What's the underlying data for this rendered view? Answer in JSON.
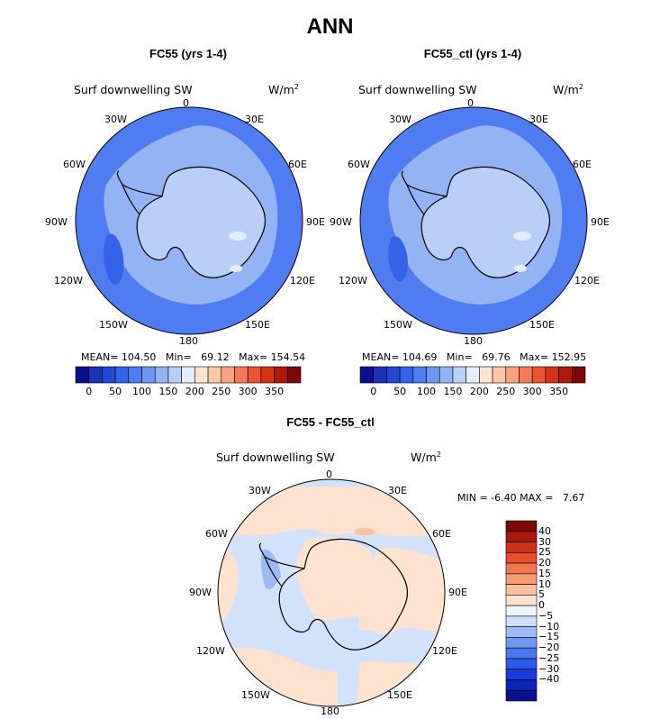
{
  "title": "ANN",
  "panels": [
    {
      "title": "FC55 (yrs 1-4)",
      "variable": "Surf downwelling SW",
      "units_base": "W/m",
      "units_exp": "2",
      "stats": {
        "mean_label": "MEAN=",
        "mean": "104.50",
        "min_label": "Min=",
        "min": "69.12",
        "max_label": "Max=",
        "max": "154.54"
      }
    },
    {
      "title": "FC55_ctl (yrs 1-4)",
      "variable": "Surf downwelling SW",
      "units_base": "W/m",
      "units_exp": "2",
      "stats": {
        "mean_label": "MEAN=",
        "mean": "104.69",
        "min_label": "Min=",
        "min": "69.76",
        "max_label": "Max=",
        "max": "152.95"
      }
    },
    {
      "title": "FC55 - FC55_ctl",
      "variable": "Surf downwelling SW",
      "units_base": "W/m",
      "units_exp": "2",
      "stats": {
        "min_label": "MIN =",
        "min": "-6.40",
        "max_label": "MAX =",
        "max": "7.67"
      }
    }
  ],
  "lon_labels": [
    "0",
    "30E",
    "60E",
    "90E",
    "120E",
    "150E",
    "180",
    "150W",
    "120W",
    "90W",
    "60W",
    "30W"
  ],
  "abs_colorbar": {
    "colors": [
      "#0a0f8a",
      "#1a32b4",
      "#2548d2",
      "#3563e8",
      "#4f7cf0",
      "#6e96f2",
      "#93b3f5",
      "#b9cff8",
      "#e4edfb",
      "#fde4d2",
      "#fbc6a9",
      "#f8a27e",
      "#f37a56",
      "#ea5430",
      "#d23418",
      "#ac1a0e",
      "#7a0808"
    ],
    "tick_labels": [
      "0",
      "50",
      "100",
      "150",
      "200",
      "250",
      "300",
      "350"
    ]
  },
  "diff_colorbar": {
    "colors": [
      "#0a0f8a",
      "#0c24b8",
      "#1a3cdc",
      "#2b58e6",
      "#4a78ec",
      "#6f98f2",
      "#9dbaf5",
      "#cfe0fb",
      "#eef4fd",
      "#fde3cf",
      "#fbc0a0",
      "#f89b75",
      "#f2774e",
      "#e6502c",
      "#cc3118",
      "#a8180c",
      "#7c0806"
    ],
    "tick_labels": [
      "40",
      "30",
      "25",
      "20",
      "15",
      "10",
      "5",
      "0",
      "−5",
      "−10",
      "−15",
      "−20",
      "−25",
      "−30",
      "−40"
    ]
  },
  "palette": {
    "ocean_blue": "#4f7cf0",
    "shelf_blue": "#93b3f5",
    "land_light": "#b9cff8",
    "deep_blue": "#3563e8",
    "diff_peach": "#fde3cf",
    "diff_blue": "#d3e2fb"
  }
}
